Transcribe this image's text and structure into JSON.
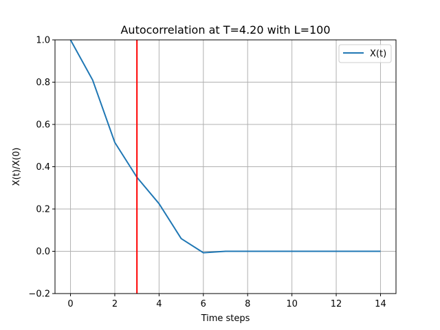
{
  "chart_data": {
    "type": "line",
    "title": "Autocorrelation at T=4.20 with L=100",
    "xlabel": "Time steps",
    "ylabel": "X(t)/X(0)",
    "xlim": [
      -0.7,
      14.7
    ],
    "ylim": [
      -0.2,
      1.0
    ],
    "xticks": [
      0,
      2,
      4,
      6,
      8,
      10,
      12,
      14
    ],
    "yticks": [
      -0.2,
      0.0,
      0.2,
      0.4,
      0.6,
      0.8,
      1.0
    ],
    "xtick_labels": [
      "0",
      "2",
      "4",
      "6",
      "8",
      "10",
      "12",
      "14"
    ],
    "ytick_labels": [
      "−0.2",
      "0.0",
      "0.2",
      "0.4",
      "0.6",
      "0.8",
      "1.0"
    ],
    "grid": true,
    "legend_position": "top-right",
    "series": [
      {
        "name": "X(t)",
        "color": "#1f77b4",
        "x": [
          0,
          1,
          2,
          3,
          4,
          5,
          6,
          7,
          8,
          9,
          10,
          11,
          12,
          13,
          14
        ],
        "y": [
          1.0,
          0.81,
          0.515,
          0.35,
          0.225,
          0.06,
          -0.007,
          0.0,
          0.0,
          0.0,
          0.0,
          0.0,
          0.0,
          0.0,
          0.0
        ]
      }
    ],
    "vline": {
      "x": 3,
      "color": "#ff0000"
    }
  }
}
